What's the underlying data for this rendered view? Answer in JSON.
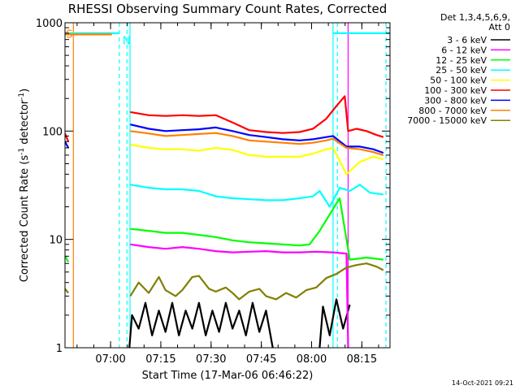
{
  "chart_data": {
    "type": "line",
    "title": "RHESSI Observing Summary Count Rates, Corrected",
    "xlabel": "Start Time (17-Mar-06 06:46:22)",
    "ylabel_main": "Corrected Count Rate (s",
    "ylabel_exp1": "-1",
    "ylabel_mid": " detector",
    "ylabel_exp2": "-1",
    "ylabel_end": ")",
    "x_unit": "minutes after 06:46:22",
    "xlim": [
      0,
      97
    ],
    "ylim": [
      1,
      1000
    ],
    "yscale": "log",
    "x_ticks": [
      {
        "label": "07:00",
        "x": 13.6
      },
      {
        "label": "07:15",
        "x": 28.6
      },
      {
        "label": "07:30",
        "x": 43.6
      },
      {
        "label": "07:45",
        "x": 58.6
      },
      {
        "label": "08:00",
        "x": 73.6
      },
      {
        "label": "08:15",
        "x": 88.6
      }
    ],
    "y_ticks": [
      {
        "label": "1",
        "y": 1
      },
      {
        "label": "10",
        "y": 10
      },
      {
        "label": "100",
        "y": 100
      },
      {
        "label": "1000",
        "y": 1000
      }
    ],
    "legend_header": [
      "Det 1,3,4,5,6,9,",
      "Att 0"
    ],
    "legend_position": "right",
    "series": [
      {
        "name": "3 - 6 keV",
        "color": "#000000",
        "segments": [
          [
            [
              19.2,
              1
            ],
            [
              20,
              2
            ],
            [
              22,
              1.5
            ],
            [
              24,
              2.6
            ],
            [
              26,
              1.3
            ],
            [
              28,
              2.2
            ],
            [
              30,
              1.4
            ],
            [
              32,
              2.6
            ],
            [
              34,
              1.3
            ],
            [
              36,
              2.2
            ],
            [
              38,
              1.5
            ],
            [
              40,
              2.6
            ],
            [
              42,
              1.3
            ],
            [
              44,
              2.2
            ],
            [
              46,
              1.4
            ],
            [
              48,
              2.6
            ],
            [
              50,
              1.5
            ],
            [
              52,
              2.2
            ],
            [
              54,
              1.3
            ],
            [
              56,
              2.6
            ],
            [
              58,
              1.4
            ],
            [
              60,
              2.2
            ],
            [
              62,
              1
            ]
          ],
          [
            [
              76,
              1
            ],
            [
              77,
              2.4
            ],
            [
              79,
              1.3
            ],
            [
              81,
              2.8
            ],
            [
              83,
              1.5
            ],
            [
              85,
              2.5
            ]
          ]
        ]
      },
      {
        "name": "6 - 12 keV",
        "color": "#ff00ff",
        "segments": [
          [
            [
              19.5,
              9
            ],
            [
              25,
              8.5
            ],
            [
              30,
              8.2
            ],
            [
              35,
              8.5
            ],
            [
              40,
              8.2
            ],
            [
              45,
              7.8
            ],
            [
              50,
              7.6
            ],
            [
              55,
              7.7
            ],
            [
              60,
              7.8
            ],
            [
              65,
              7.6
            ],
            [
              70,
              7.6
            ],
            [
              75,
              7.7
            ],
            [
              80,
              7.6
            ],
            [
              84,
              7.4
            ],
            [
              84.5,
              1
            ]
          ]
        ]
      },
      {
        "name": "12 - 25 keV",
        "color": "#00ff00",
        "segments": [
          [
            [
              0,
              7
            ],
            [
              1,
              6.2
            ]
          ],
          [
            [
              19.5,
              12.5
            ],
            [
              25,
              12
            ],
            [
              30,
              11.5
            ],
            [
              35,
              11.5
            ],
            [
              40,
              11
            ],
            [
              45,
              10.5
            ],
            [
              50,
              9.8
            ],
            [
              55,
              9.4
            ],
            [
              60,
              9.2
            ],
            [
              65,
              9
            ],
            [
              70,
              8.8
            ],
            [
              73,
              9
            ],
            [
              76,
              12
            ],
            [
              79,
              17
            ],
            [
              82,
              24
            ],
            [
              85,
              6.5
            ],
            [
              90,
              6.8
            ],
            [
              95,
              6.5
            ]
          ]
        ]
      },
      {
        "name": "25 - 50 keV",
        "color": "#00ffff",
        "segments": [
          [
            [
              0,
              800
            ],
            [
              16.2,
              800
            ]
          ],
          [
            [
              19.5,
              32
            ],
            [
              25,
              30
            ],
            [
              30,
              29
            ],
            [
              35,
              29
            ],
            [
              40,
              28
            ],
            [
              45,
              25
            ],
            [
              50,
              24
            ],
            [
              55,
              23.5
            ],
            [
              60,
              23
            ],
            [
              65,
              23
            ],
            [
              70,
              24
            ],
            [
              74,
              25
            ],
            [
              76,
              28
            ],
            [
              79,
              20
            ],
            [
              82,
              30
            ],
            [
              85,
              28
            ],
            [
              88,
              32
            ],
            [
              91,
              27
            ],
            [
              95,
              26
            ]
          ],
          [
            [
              80,
              800
            ],
            [
              97,
              800
            ]
          ]
        ]
      },
      {
        "name": "50 - 100 keV",
        "color": "#ffff00",
        "segments": [
          [
            [
              19.5,
              75
            ],
            [
              25,
              70
            ],
            [
              30,
              68
            ],
            [
              35,
              68
            ],
            [
              40,
              66
            ],
            [
              45,
              70
            ],
            [
              50,
              67
            ],
            [
              55,
              60
            ],
            [
              60,
              58
            ],
            [
              65,
              58
            ],
            [
              70,
              58
            ],
            [
              74,
              62
            ],
            [
              78,
              68
            ],
            [
              80,
              70
            ],
            [
              84,
              40
            ],
            [
              88,
              52
            ],
            [
              92,
              58
            ],
            [
              95,
              55
            ]
          ]
        ]
      },
      {
        "name": "100 - 300 keV",
        "color": "#ff0000",
        "segments": [
          [
            [
              0,
              95
            ],
            [
              1,
              80
            ]
          ],
          [
            [
              19.5,
              150
            ],
            [
              25,
              140
            ],
            [
              30,
              138
            ],
            [
              35,
              140
            ],
            [
              40,
              138
            ],
            [
              45,
              140
            ],
            [
              50,
              120
            ],
            [
              55,
              102
            ],
            [
              60,
              98
            ],
            [
              65,
              96
            ],
            [
              70,
              98
            ],
            [
              74,
              105
            ],
            [
              78,
              130
            ],
            [
              81,
              170
            ],
            [
              83.5,
              210
            ],
            [
              84.5,
              100
            ],
            [
              87,
              105
            ],
            [
              90,
              100
            ],
            [
              93,
              92
            ],
            [
              95,
              88
            ]
          ]
        ]
      },
      {
        "name": "300 - 800 keV",
        "color": "#0000ff",
        "segments": [
          [
            [
              0,
              80
            ],
            [
              1,
              70
            ]
          ],
          [
            [
              19.5,
              115
            ],
            [
              25,
              105
            ],
            [
              30,
              100
            ],
            [
              35,
              102
            ],
            [
              40,
              104
            ],
            [
              45,
              108
            ],
            [
              50,
              100
            ],
            [
              55,
              92
            ],
            [
              60,
              88
            ],
            [
              65,
              84
            ],
            [
              70,
              82
            ],
            [
              74,
              84
            ],
            [
              78,
              88
            ],
            [
              80,
              90
            ],
            [
              84,
              72
            ],
            [
              88,
              72
            ],
            [
              92,
              68
            ],
            [
              95,
              63
            ]
          ]
        ]
      },
      {
        "name": "800 - 7000 keV",
        "color": "#ff8000",
        "segments": [
          [
            [
              0,
              780
            ],
            [
              14,
              780
            ]
          ],
          [
            [
              19.5,
              100
            ],
            [
              25,
              95
            ],
            [
              30,
              90
            ],
            [
              35,
              92
            ],
            [
              40,
              94
            ],
            [
              45,
              96
            ],
            [
              50,
              90
            ],
            [
              55,
              82
            ],
            [
              60,
              80
            ],
            [
              65,
              78
            ],
            [
              70,
              76
            ],
            [
              74,
              78
            ],
            [
              78,
              82
            ],
            [
              80,
              85
            ],
            [
              84,
              70
            ],
            [
              88,
              68
            ],
            [
              92,
              64
            ],
            [
              95,
              60
            ]
          ]
        ]
      },
      {
        "name": "7000 - 15000 keV",
        "color": "#808000",
        "segments": [
          [
            [
              0,
              3.5
            ],
            [
              1,
              3.2
            ]
          ],
          [
            [
              19.5,
              3
            ],
            [
              22,
              4
            ],
            [
              25,
              3.2
            ],
            [
              28,
              4.5
            ],
            [
              30,
              3.4
            ],
            [
              33,
              3
            ],
            [
              35,
              3.4
            ],
            [
              38,
              4.5
            ],
            [
              40,
              4.6
            ],
            [
              43,
              3.5
            ],
            [
              45,
              3.3
            ],
            [
              48,
              3.6
            ],
            [
              50,
              3.2
            ],
            [
              52,
              2.8
            ],
            [
              55,
              3.3
            ],
            [
              58,
              3.5
            ],
            [
              60,
              3
            ],
            [
              63,
              2.8
            ],
            [
              66,
              3.2
            ],
            [
              69,
              2.9
            ],
            [
              72,
              3.4
            ],
            [
              75,
              3.6
            ],
            [
              78,
              4.4
            ],
            [
              81,
              4.8
            ],
            [
              84,
              5.5
            ],
            [
              87,
              5.8
            ],
            [
              90,
              6
            ],
            [
              93,
              5.6
            ],
            [
              95,
              5.2
            ]
          ]
        ]
      }
    ],
    "annotations": [
      {
        "text": "S",
        "x": 0.3,
        "y": 780,
        "color": "#ff8000"
      },
      {
        "text": "N",
        "x": 17.2,
        "y": 680,
        "color": "#00ffff"
      }
    ],
    "vlines": [
      {
        "x": 2.5,
        "color": "#ff8000",
        "style": "solid"
      },
      {
        "x": 16.2,
        "color": "#00ffff",
        "style": "dashed"
      },
      {
        "x": 18.5,
        "color": "#00ffff",
        "style": "dashed"
      },
      {
        "x": 19.4,
        "color": "#00ffff",
        "style": "solid"
      },
      {
        "x": 80,
        "color": "#00ffff",
        "style": "solid"
      },
      {
        "x": 81.3,
        "color": "#00ffff",
        "style": "dashed"
      },
      {
        "x": 84.5,
        "color": "#ff00ff",
        "style": "solid"
      },
      {
        "x": 95.8,
        "color": "#00ffff",
        "style": "dashed"
      }
    ],
    "grid": false
  },
  "timestamp": "14-Oct-2021 09:21"
}
